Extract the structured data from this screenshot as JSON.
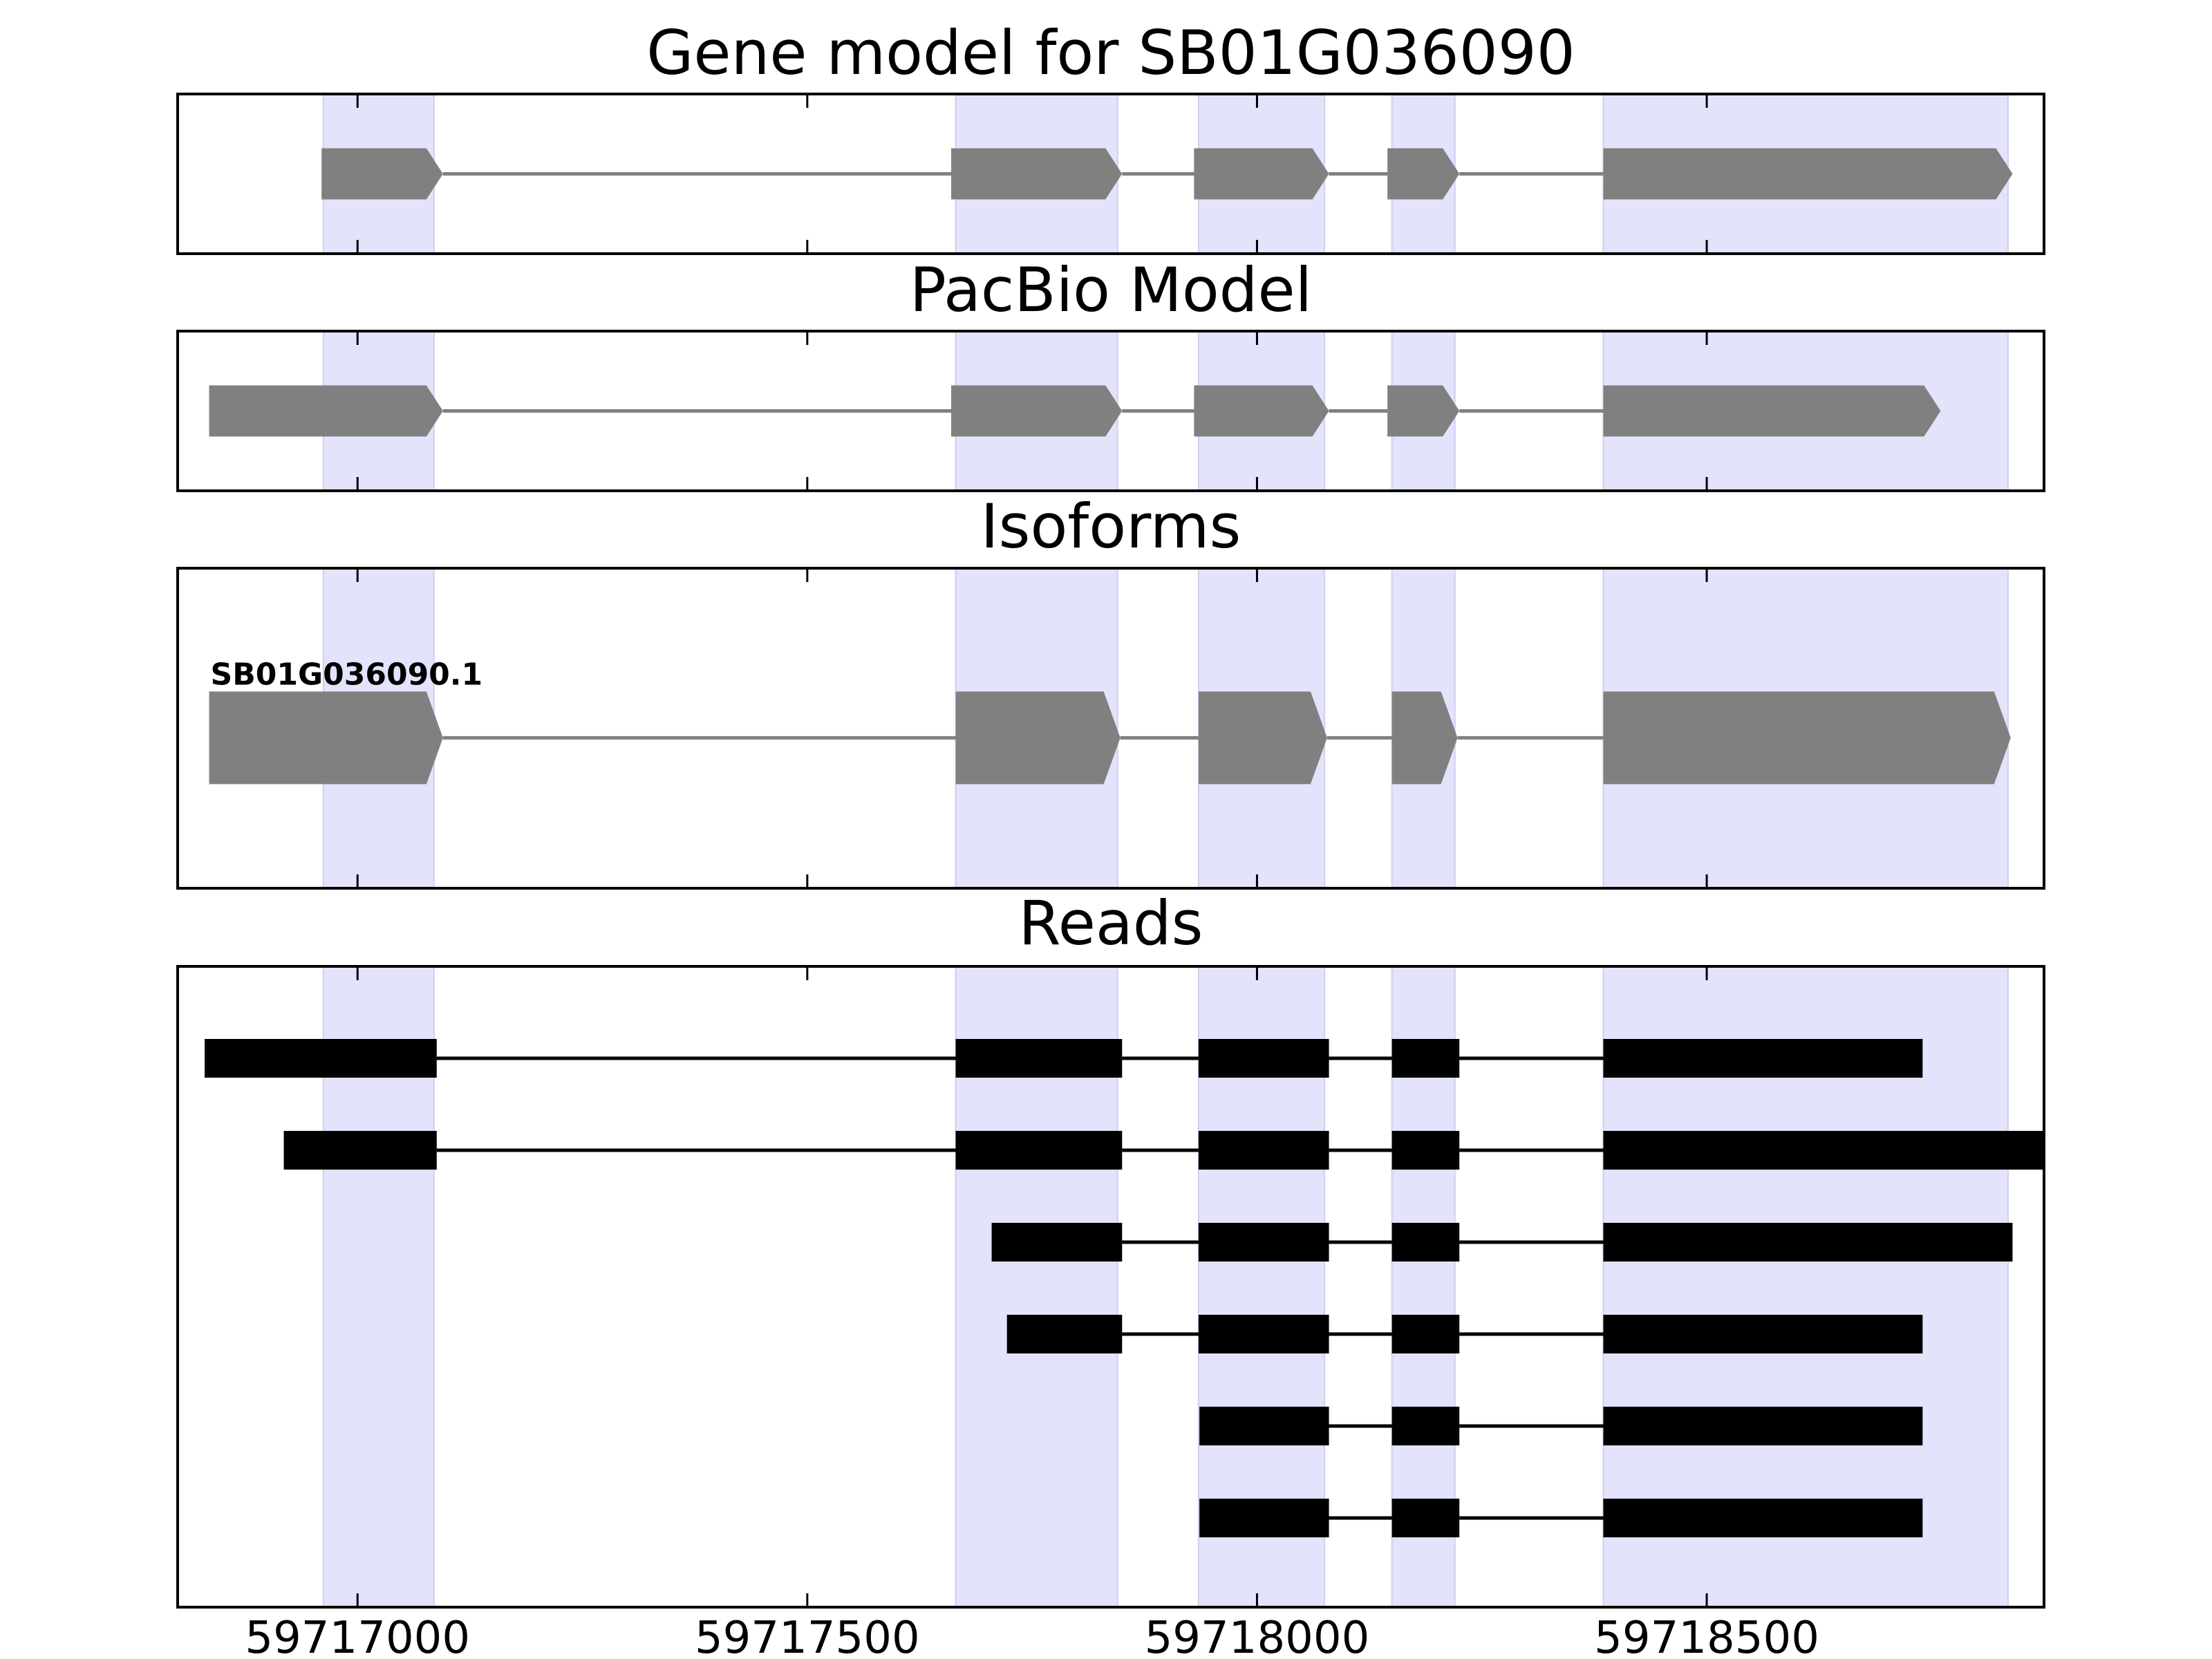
{
  "chart_data": {
    "type": "gene_structure",
    "xlim": [
      59716800,
      59718875
    ],
    "x_ticks": [
      59717000,
      59717500,
      59718000,
      59718500
    ],
    "x_tick_labels": [
      "59717000",
      "59717500",
      "59718000",
      "59718500"
    ],
    "highlight_regions": [
      [
        59716962,
        59717085
      ],
      [
        59717665,
        59717845
      ],
      [
        59717935,
        59718075
      ],
      [
        59718150,
        59718220
      ],
      [
        59718385,
        59718835
      ]
    ],
    "highlight_color": "#e3e3fb",
    "feature_color": "#808080",
    "read_color": "#000000",
    "panels": [
      {
        "title": "Gene model for SB01G036090",
        "kind": "model",
        "strand": "+",
        "exons": [
          [
            59716960,
            59717095
          ],
          [
            59717660,
            59717850
          ],
          [
            59717930,
            59718080
          ],
          [
            59718145,
            59718225
          ],
          [
            59718385,
            59718840
          ]
        ]
      },
      {
        "title": "PacBio Model",
        "kind": "model",
        "strand": "+",
        "exons": [
          [
            59716835,
            59717095
          ],
          [
            59717660,
            59717850
          ],
          [
            59717930,
            59718080
          ],
          [
            59718145,
            59718225
          ],
          [
            59718385,
            59718760
          ]
        ]
      },
      {
        "title": "Isoforms",
        "kind": "isoforms",
        "strand": "+",
        "isoforms": [
          {
            "name": "SB01G036090.1",
            "exons": [
              [
                59716835,
                59717095
              ],
              [
                59717665,
                59717848
              ],
              [
                59717935,
                59718078
              ],
              [
                59718150,
                59718223
              ],
              [
                59718385,
                59718838
              ]
            ]
          }
        ]
      },
      {
        "title": "Reads",
        "kind": "reads",
        "reads": [
          [
            [
              59716830,
              59717088
            ],
            [
              59717665,
              59717850
            ],
            [
              59717935,
              59718080
            ],
            [
              59718150,
              59718225
            ],
            [
              59718385,
              59718740
            ]
          ],
          [
            [
              59716918,
              59717088
            ],
            [
              59717665,
              59717850
            ],
            [
              59717935,
              59718080
            ],
            [
              59718150,
              59718225
            ],
            [
              59718385,
              59718875
            ]
          ],
          [
            [
              59717705,
              59717850
            ],
            [
              59717935,
              59718080
            ],
            [
              59718150,
              59718225
            ],
            [
              59718385,
              59718840
            ]
          ],
          [
            [
              59717722,
              59717850
            ],
            [
              59717935,
              59718080
            ],
            [
              59718150,
              59718225
            ],
            [
              59718385,
              59718740
            ]
          ],
          [
            [
              59717936,
              59718080
            ],
            [
              59718150,
              59718225
            ],
            [
              59718385,
              59718740
            ]
          ],
          [
            [
              59717936,
              59718080
            ],
            [
              59718150,
              59718225
            ],
            [
              59718385,
              59718740
            ]
          ]
        ]
      }
    ]
  }
}
